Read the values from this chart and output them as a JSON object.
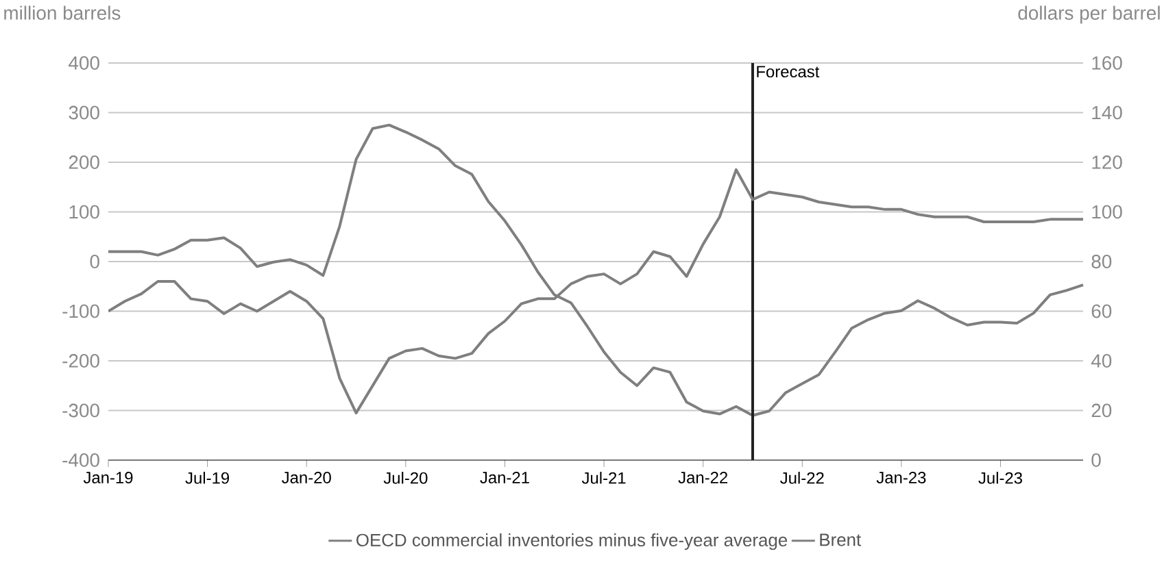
{
  "chart_data": {
    "type": "line",
    "ylabel": "million barrels",
    "y2label": "dollars per barrel",
    "x": [
      "2019-01",
      "2019-02",
      "2019-03",
      "2019-04",
      "2019-05",
      "2019-06",
      "2019-07",
      "2019-08",
      "2019-09",
      "2019-10",
      "2019-11",
      "2019-12",
      "2020-01",
      "2020-02",
      "2020-03",
      "2020-04",
      "2020-05",
      "2020-06",
      "2020-07",
      "2020-08",
      "2020-09",
      "2020-10",
      "2020-11",
      "2020-12",
      "2021-01",
      "2021-02",
      "2021-03",
      "2021-04",
      "2021-05",
      "2021-06",
      "2021-07",
      "2021-08",
      "2021-09",
      "2021-10",
      "2021-11",
      "2021-12",
      "2022-01",
      "2022-02",
      "2022-03",
      "2022-04",
      "2022-05",
      "2022-06",
      "2022-07",
      "2022-08",
      "2022-09",
      "2022-10",
      "2022-11",
      "2022-12",
      "2023-01",
      "2023-02",
      "2023-03",
      "2023-04",
      "2023-05",
      "2023-06",
      "2023-07",
      "2023-08",
      "2023-09",
      "2023-10",
      "2023-11",
      "2023-12"
    ],
    "series": [
      {
        "name": "OECD commercial inventories minus five-year average",
        "color": "#7f7f7f",
        "values": [
          20,
          20,
          20,
          13,
          25,
          43,
          43,
          48,
          27,
          -10,
          -1,
          4,
          -7,
          -28,
          71,
          206,
          268,
          275,
          261,
          245,
          227,
          193,
          176,
          121,
          82,
          34,
          -21,
          -67,
          -83,
          -131,
          -182,
          -223,
          -250,
          -214,
          -223,
          -283,
          -301,
          -307,
          -292,
          -310,
          -301,
          -264,
          -246,
          -228,
          -182,
          -134,
          -117,
          -104,
          -99,
          -79,
          -94,
          -113,
          -128,
          -122,
          -122,
          -124,
          -104,
          -67,
          -58,
          -47
        ]
      },
      {
        "name": "Brent",
        "color": "#7f7f7f",
        "axis": "y2",
        "values": [
          60,
          64,
          67,
          72,
          72,
          65,
          64,
          59,
          63,
          60,
          64,
          68,
          64,
          57,
          33,
          19,
          30,
          41,
          44,
          45,
          42,
          41,
          43,
          51,
          56,
          63,
          65,
          65,
          71,
          74,
          75,
          71,
          75,
          84,
          82,
          74,
          87,
          98,
          117,
          105,
          108,
          107,
          106,
          104,
          103,
          102,
          102,
          101,
          101,
          99,
          98,
          98,
          98,
          96,
          96,
          96,
          96,
          97,
          97,
          97
        ]
      }
    ],
    "xlim": [
      "2019-01",
      "2023-12"
    ],
    "xticks": [
      {
        "value": "2019-01",
        "label": "Jan-19"
      },
      {
        "value": "2019-07",
        "label": "Jul-19"
      },
      {
        "value": "2020-01",
        "label": "Jan-20"
      },
      {
        "value": "2020-07",
        "label": "Jul-20"
      },
      {
        "value": "2021-01",
        "label": "Jan-21"
      },
      {
        "value": "2021-07",
        "label": "Jul-21"
      },
      {
        "value": "2022-01",
        "label": "Jan-22"
      },
      {
        "value": "2022-07",
        "label": "Jul-22"
      },
      {
        "value": "2023-01",
        "label": "Jan-23"
      },
      {
        "value": "2023-07",
        "label": "Jul-23"
      }
    ],
    "ylim": [
      -400,
      400
    ],
    "yticks": [
      -400,
      -300,
      -200,
      -100,
      0,
      100,
      200,
      300,
      400
    ],
    "y2lim": [
      0,
      160
    ],
    "y2ticks": [
      0,
      20,
      40,
      60,
      80,
      100,
      120,
      140,
      160
    ],
    "ref_lines": [
      {
        "axis": "x",
        "value": "2022-04",
        "label": "Forecast",
        "color": "#222222"
      }
    ],
    "grid": "y",
    "legend": "bottom",
    "marker": "none",
    "line_style": "solid"
  }
}
